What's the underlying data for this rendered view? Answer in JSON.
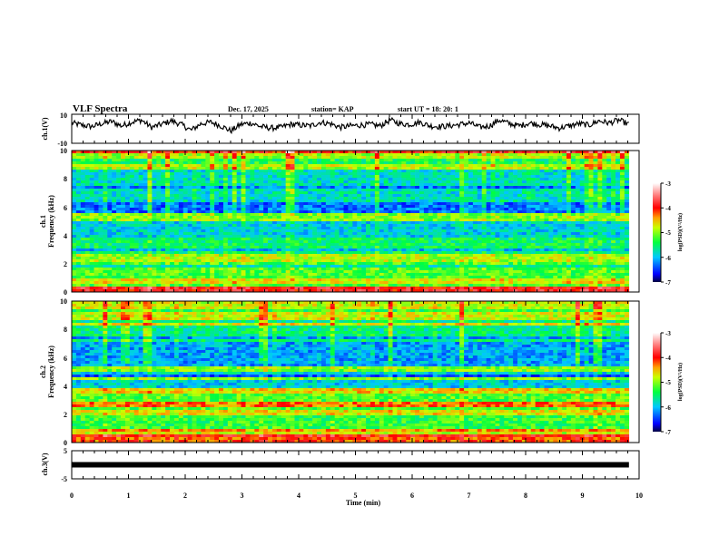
{
  "header": {
    "title": "VLF Spectra",
    "date": "Dec. 17, 2025",
    "station": "station= KAP",
    "start": "start  UT =   18: 20: 1"
  },
  "chart_data": [
    {
      "type": "line",
      "name": "ch1-waveform",
      "ylabel": "ch.1(V)",
      "ylim": [
        -10,
        10
      ],
      "ytick_labels": [
        "10",
        "-10"
      ],
      "xlim": [
        0,
        10
      ],
      "data_end_min": 9.82,
      "trace_description_values": [
        4.0,
        2.5,
        1.5,
        3.5,
        5.0,
        2.0,
        4.5,
        6.0,
        1.0,
        3.0,
        5.5,
        3.0,
        -1.0,
        3.5,
        4.5,
        2.0,
        -1.5,
        3.0,
        4.0,
        1.5,
        0.5,
        1.0,
        3.0,
        2.5,
        2.0,
        4.5,
        3.5,
        1.0,
        2.0,
        2.5,
        3.0,
        2.0,
        6.0,
        3.5,
        3.0,
        4.5,
        2.0,
        1.5,
        2.0,
        3.0,
        4.0,
        1.0,
        2.0,
        6.0,
        3.5,
        2.0,
        4.0,
        3.0,
        2.0,
        0.5,
        2.0,
        3.5,
        2.5,
        5.5,
        4.0,
        6.0,
        3.0
      ]
    },
    {
      "type": "heatmap",
      "name": "ch1-spectrogram",
      "ylabel_line1": "ch.1",
      "ylabel_line2": "Frequency  (kHz)",
      "ylim": [
        0,
        10
      ],
      "ytick_labels": [
        "0",
        "2",
        "4",
        "6",
        "8",
        "10"
      ],
      "xlim": [
        0,
        10
      ],
      "data_end_min": 9.82,
      "colorbar": {
        "label": "log(PSD)(V²/Hz)",
        "range": [
          -7,
          -3
        ],
        "tick_labels": [
          "-3",
          "-4",
          "-5",
          "-6",
          "-7"
        ]
      },
      "bands_khz": [
        {
          "from": 0,
          "to": 0.3,
          "level": -3.9
        },
        {
          "from": 0.3,
          "to": 1.0,
          "level": -4.7
        },
        {
          "from": 1.0,
          "to": 2.2,
          "level": -5.2
        },
        {
          "from": 2.2,
          "to": 2.6,
          "level": -4.9
        },
        {
          "from": 2.6,
          "to": 3.8,
          "level": -5.5
        },
        {
          "from": 3.8,
          "to": 5.0,
          "level": -5.9
        },
        {
          "from": 5.0,
          "to": 5.6,
          "level": -5.0
        },
        {
          "from": 5.6,
          "to": 6.4,
          "level": -6.3
        },
        {
          "from": 6.4,
          "to": 8.6,
          "level": -5.8
        },
        {
          "from": 8.6,
          "to": 10,
          "level": -4.9
        }
      ]
    },
    {
      "type": "heatmap",
      "name": "ch2-spectrogram",
      "ylabel_line1": "ch.2",
      "ylabel_line2": "Frequency  (kHz)",
      "ylim": [
        0,
        10
      ],
      "ytick_labels": [
        "0",
        "2",
        "4",
        "6",
        "8",
        "10"
      ],
      "xlim": [
        0,
        10
      ],
      "data_end_min": 9.82,
      "colorbar": {
        "label": "log(PSD)(V²/Hz)",
        "range": [
          -7,
          -3
        ],
        "tick_labels": [
          "-3",
          "-4",
          "-5",
          "-6",
          "-7"
        ]
      },
      "bands_khz": [
        {
          "from": 0,
          "to": 0.3,
          "level": -4.2
        },
        {
          "from": 0.3,
          "to": 0.8,
          "level": -4.8
        },
        {
          "from": 0.8,
          "to": 2.0,
          "level": -5.3
        },
        {
          "from": 2.0,
          "to": 2.3,
          "level": -4.7
        },
        {
          "from": 2.3,
          "to": 3.4,
          "level": -5.2
        },
        {
          "from": 3.4,
          "to": 3.8,
          "level": -4.6
        },
        {
          "from": 3.8,
          "to": 5.0,
          "level": -5.9
        },
        {
          "from": 5.0,
          "to": 5.4,
          "level": -5.0
        },
        {
          "from": 5.4,
          "to": 7.0,
          "level": -6.1
        },
        {
          "from": 7.0,
          "to": 8.6,
          "level": -5.6
        },
        {
          "from": 8.6,
          "to": 10,
          "level": -4.8
        }
      ]
    },
    {
      "type": "line",
      "name": "ch3-waveform",
      "ylabel": "ch.3(V)",
      "ylim": [
        -5,
        5
      ],
      "ytick_labels": [
        "5",
        "-5"
      ],
      "xlim": [
        0,
        10
      ],
      "data_end_min": 9.82,
      "constant_value": 0
    }
  ],
  "xaxis": {
    "label": "Time  (min)",
    "tick_labels": [
      "0",
      "1",
      "2",
      "3",
      "4",
      "5",
      "6",
      "7",
      "8",
      "9",
      "10"
    ]
  }
}
